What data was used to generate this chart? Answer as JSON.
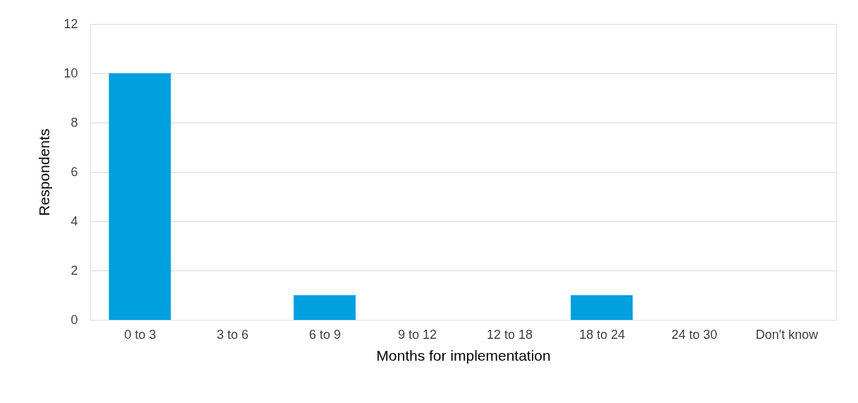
{
  "chart_data": {
    "type": "bar",
    "xlabel": "Months for implementation",
    "ylabel": "Respondents",
    "categories": [
      "0 to 3",
      "3 to 6",
      "6 to 9",
      "9 to 12",
      "12 to 18",
      "18 to 24",
      "24 to 30",
      "Don't know"
    ],
    "values": [
      10,
      0,
      1,
      0,
      0,
      1,
      0,
      0
    ],
    "color": "#009fe0",
    "ylim": [
      0,
      12
    ],
    "yticks": [
      0,
      2,
      4,
      6,
      8,
      10,
      12
    ],
    "grid": "y"
  }
}
